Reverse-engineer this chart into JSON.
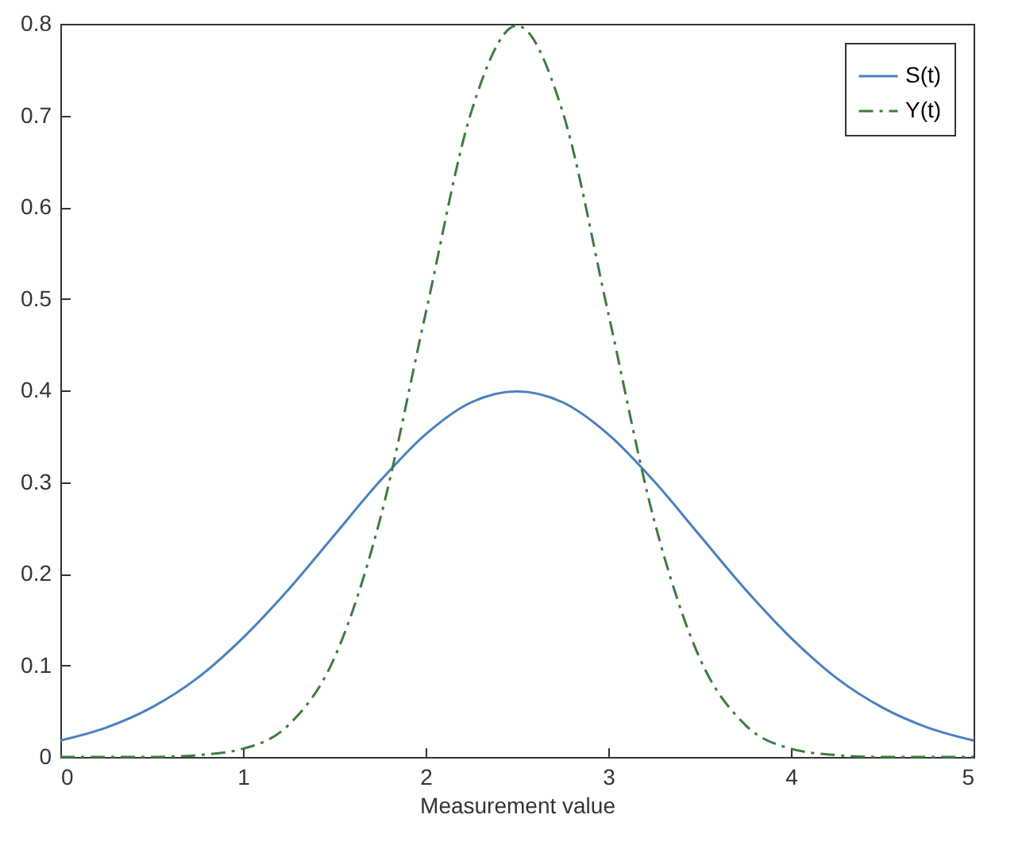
{
  "chart_data": {
    "type": "line",
    "xlabel": "Measurement value",
    "x": [
      0,
      0.25,
      0.5,
      0.75,
      1,
      1.25,
      1.5,
      1.75,
      2,
      2.25,
      2.5,
      2.75,
      3,
      3.25,
      3.5,
      3.75,
      4,
      4.25,
      4.5,
      4.75,
      5
    ],
    "series": [
      {
        "name": "S(t)",
        "color": "#4a7fc1",
        "line_style": "solid",
        "values": [
          0.018,
          0.032,
          0.054,
          0.086,
          0.13,
          0.183,
          0.242,
          0.301,
          0.352,
          0.387,
          0.399,
          0.387,
          0.352,
          0.301,
          0.242,
          0.183,
          0.13,
          0.086,
          0.054,
          0.032,
          0.018
        ]
      },
      {
        "name": "Y(t)",
        "color": "#3d7a3d",
        "line_style": "dashdot",
        "values": [
          0,
          0,
          0,
          0.002,
          0.009,
          0.035,
          0.108,
          0.259,
          0.484,
          0.704,
          0.798,
          0.704,
          0.484,
          0.259,
          0.108,
          0.035,
          0.009,
          0.002,
          0,
          0,
          0
        ]
      }
    ],
    "xlim": [
      0,
      5
    ],
    "xticks": [
      0,
      1,
      2,
      3,
      4,
      5
    ],
    "ylim": [
      0,
      0.8
    ],
    "yticks": [
      {
        "value": 0,
        "label": "0"
      },
      0.1,
      0.2,
      0.3,
      0.4,
      0.5,
      0.6,
      0.7,
      0.8
    ],
    "grid": false,
    "legend": "top right",
    "marker": "none"
  }
}
